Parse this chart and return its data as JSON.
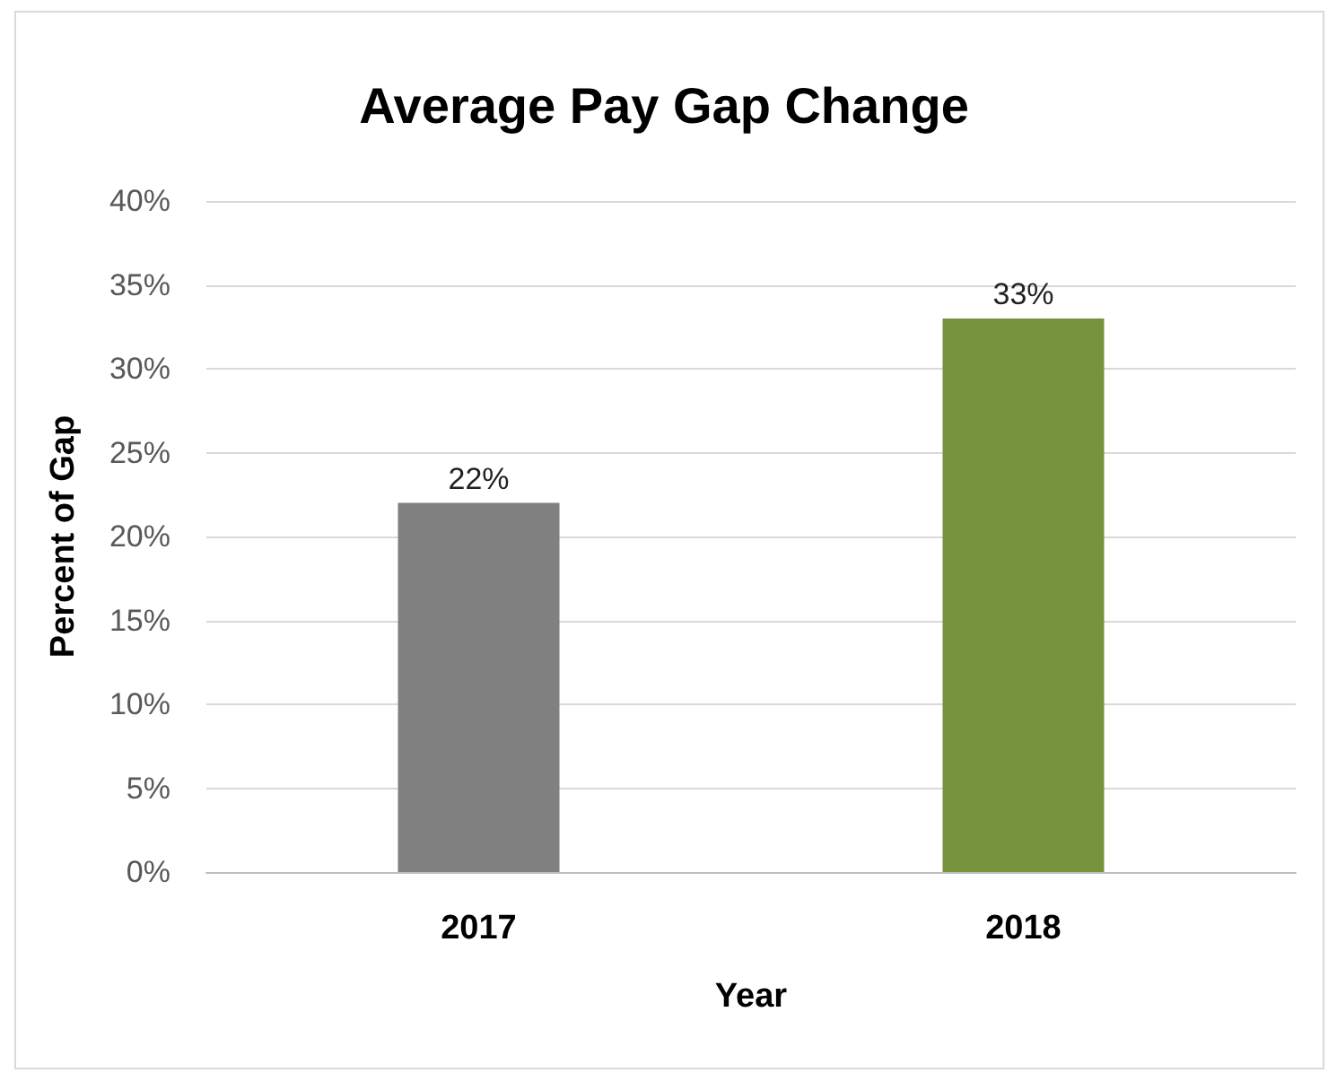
{
  "chart_data": {
    "type": "bar",
    "title": "Average Pay Gap Change",
    "xlabel": "Year",
    "ylabel": "Percent of Gap",
    "categories": [
      "2017",
      "2018"
    ],
    "values": [
      22,
      33
    ],
    "colors": [
      "#808080",
      "#77933c"
    ],
    "value_labels": [
      "22%",
      "33%"
    ],
    "ylim": [
      0,
      40
    ],
    "yticks": [
      {
        "value": 0,
        "label": "0%"
      },
      {
        "value": 5,
        "label": "5%"
      },
      {
        "value": 10,
        "label": "10%"
      },
      {
        "value": 15,
        "label": "15%"
      },
      {
        "value": 20,
        "label": "20%"
      },
      {
        "value": 25,
        "label": "25%"
      },
      {
        "value": 30,
        "label": "30%"
      },
      {
        "value": 35,
        "label": "35%"
      },
      {
        "value": 40,
        "label": "40%"
      }
    ],
    "grid": "y"
  }
}
